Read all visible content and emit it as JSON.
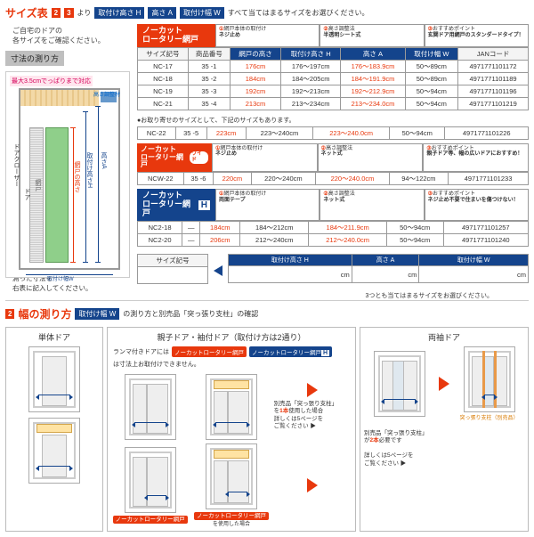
{
  "header": {
    "title": "サイズ表",
    "nums": [
      "2",
      "3"
    ],
    "mid": "より",
    "pills": [
      "取付け高さ H",
      "高さ A",
      "取付け幅 W"
    ],
    "tail": "すべて当てはまるサイズをお選びください。"
  },
  "subnote": "ご自宅のドアの\n各サイズをご確認ください。",
  "greybox": "寸法の測り方",
  "diagram": {
    "pink": "最大3.5cmでっぱりまで対応",
    "adjust": "高さ調整材",
    "labels": {
      "closer": "ドアクローザー",
      "door": "ドア",
      "screen": "網戸",
      "w": "取付け幅W",
      "ha": "高さA",
      "hh": "取付け高さH",
      "sh": "網戸の高さ"
    }
  },
  "prod1": {
    "name": "ノーカット\nロータリー網戸",
    "desc": [
      {
        "n": "①",
        "t": "網戸本体の取付け",
        "b": "ネジ止め"
      },
      {
        "n": "②",
        "t": "高さ調整法",
        "b": "半透明シート式"
      },
      {
        "n": "③",
        "t": "おすすめポイント",
        "b": "玄関ドア用網戸のスタンダードタイプ！"
      }
    ],
    "cols": [
      "サイズ記号",
      "商品番号",
      "網戸の高さ",
      "取付け高さ H",
      "高さ A",
      "取付け幅 W",
      "JANコード"
    ],
    "rows": [
      [
        "NC-17",
        "35 -1",
        "176cm",
        "176～197cm",
        "176～183.9cm",
        "50～89cm",
        "4971771101172"
      ],
      [
        "NC-18",
        "35 -2",
        "184cm",
        "184～205cm",
        "184～191.9cm",
        "50～89cm",
        "4971771101189"
      ],
      [
        "NC-19",
        "35 -3",
        "192cm",
        "192～213cm",
        "192～212.9cm",
        "50～94cm",
        "4971771101196"
      ],
      [
        "NC-21",
        "35 -4",
        "213cm",
        "213～234cm",
        "213～234.0cm",
        "50～94cm",
        "4971771101219"
      ]
    ],
    "note": "●お取り寄せのサイズとして、下記のサイズもあります。",
    "rows2": [
      [
        "NC-22",
        "35 -5",
        "223cm",
        "223～240cm",
        "223～240.0cm",
        "50～94cm",
        "4971771101226"
      ]
    ]
  },
  "prod2": {
    "name": "ノーカット\nロータリー網戸",
    "wide": "ワイド",
    "desc": [
      {
        "n": "①",
        "t": "網戸本体の取付け",
        "b": "ネジ止め"
      },
      {
        "n": "②",
        "t": "高さ調整法",
        "b": "ネット式"
      },
      {
        "n": "③",
        "t": "おすすめポイント",
        "b": "親子ドア等、幅の広いドアにおすすめ！"
      }
    ],
    "rows": [
      [
        "NCW-22",
        "35 -6",
        "220cm",
        "220～240cm",
        "220～240.0cm",
        "94～122cm",
        "4971771101233"
      ]
    ]
  },
  "prod3": {
    "name": "ノーカット\nロータリー網戸",
    "badge": "H",
    "desc": [
      {
        "n": "①",
        "t": "網戸本体の取付け",
        "b": "両面テープ"
      },
      {
        "n": "②",
        "t": "高さ調整法",
        "b": "ネット式"
      },
      {
        "n": "③",
        "t": "おすすめポイント",
        "b": "ネジ止め不要で住まいを傷つけない！"
      }
    ],
    "rows": [
      [
        "NC2-18",
        "—",
        "184cm",
        "184～212cm",
        "184～211.9cm",
        "50～94cm",
        "4971771101257"
      ],
      [
        "NC2-20",
        "—",
        "206cm",
        "212～240cm",
        "212～240.0cm",
        "50～94cm",
        "4971771101240"
      ]
    ]
  },
  "measure": {
    "left_note": "測った寸法を\n右表に記入してください。",
    "boxcols": [
      "サイズ記号",
      "取付け高さ H",
      "高さ A",
      "取付け幅 W"
    ],
    "unit": "cm",
    "bottom": "3つとも当てはまるサイズをお選びください。"
  },
  "sec2": {
    "num": "2",
    "title": "幅の測り方",
    "pill": "取付け幅 W",
    "tail": "の測り方と別売品「突っ張り支柱」の確認"
  },
  "cols": {
    "c1": "単体ドア",
    "c2": "親子ドア・袖付ドア（取付け方は2通り）",
    "c3": "両袖ドア"
  },
  "ranma_note": {
    "pre": "ランマ付きドアには",
    "b1": "ノーカットロータリー網戸",
    "b2": "ノーカットロータリー網戸",
    "h": "H",
    "tail": "は寸法上お取付けできません。"
  },
  "c2notes": {
    "a": "別売品「突っ張り支柱」\nを1本使用した場合",
    "b": "詳しくは5ページを\nご覧ください ▶",
    "c": "を使用した場合"
  },
  "c3notes": {
    "pillar": "突っ張り支柱（別売品）",
    "a": "別売品「突っ張り支柱」\nが2本必要です",
    "b": "詳しくは5ページを\nご覧ください ▶"
  }
}
